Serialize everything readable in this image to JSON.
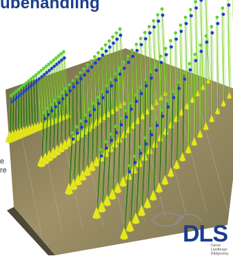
{
  "header": {
    "title": "ubehandling"
  },
  "side_text": {
    "fragment_1": "e",
    "fragment_2": "re"
  },
  "logo": {
    "text": "DLS",
    "subtext": "Dansk Landbrugs Rådgivning"
  },
  "colors": {
    "title": "#1a3e8c",
    "top_marker": "#5cd13a",
    "blue_marker": "#1f3ad6",
    "stem_dark": "#0f5a12",
    "stem_light": "#9be52a",
    "nozzle": "#e6e61e",
    "soil": "#8a7e55"
  }
}
